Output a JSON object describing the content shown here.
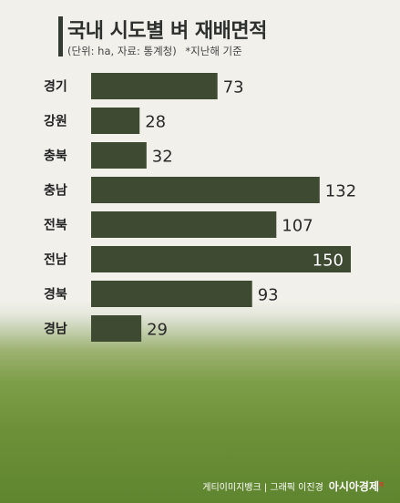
{
  "header": {
    "title": "국내 시도별 벼 재배면적",
    "unit_note": "(단위: ha, 자료: 통계청)",
    "basis_note": "*지난해 기준"
  },
  "chart_data": {
    "type": "bar",
    "orientation": "horizontal",
    "title": "국내 시도별 벼 재배면적",
    "unit": "ha",
    "categories": [
      "경기",
      "강원",
      "충북",
      "충남",
      "전북",
      "전남",
      "경북",
      "경남"
    ],
    "values": [
      73,
      28,
      32,
      132,
      107,
      150,
      93,
      29
    ],
    "xlim": [
      0,
      150
    ],
    "grid": false,
    "legend": "none",
    "colors": {
      "bar": "#3e4a32"
    }
  },
  "footer": {
    "credit": "게티이미지뱅크 | 그래픽 이진경",
    "brand": "아시아경제"
  }
}
